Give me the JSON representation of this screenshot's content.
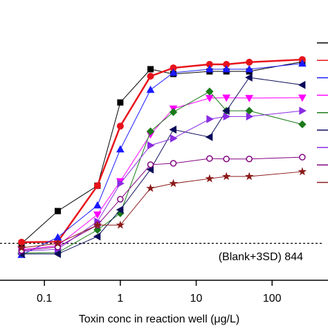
{
  "chart_data": {
    "type": "line",
    "x_label": "Toxin conc in reaction well (μg/L)",
    "annotation": "(Blank+3SD) 844",
    "threshold": 844,
    "log_x": true,
    "xlim": [
      0.026,
      545
    ],
    "ylim": [
      0,
      6400
    ],
    "xticks": [
      {
        "value": 0.1,
        "label": "0.1"
      },
      1,
      10,
      100
    ],
    "x": [
      0.05,
      0.15,
      0.5,
      1,
      2.5,
      5,
      15,
      25,
      50,
      250
    ],
    "series": [
      {
        "color": "#000000",
        "marker": "square",
        "values": [
          840,
          1580,
          2160,
          4060,
          4820,
          4710,
          4770,
          4770,
          4770,
          4990
        ]
      },
      {
        "color": "#e8131b",
        "marker": "circle",
        "values": [
          870,
          880,
          2160,
          3520,
          4660,
          4850,
          4930,
          4930,
          4980,
          5040
        ]
      },
      {
        "color": "#1a1aff",
        "marker": "up",
        "values": [
          580,
          980,
          1710,
          2990,
          4350,
          4740,
          4820,
          4820,
          4820,
          4950
        ]
      },
      {
        "color": "#ff00ff",
        "marker": "down",
        "values": [
          700,
          790,
          1500,
          2260,
          3330,
          3920,
          4160,
          4170,
          4160,
          4170
        ]
      },
      {
        "color": "#1a7a1a",
        "marker": "diamond",
        "values": [
          620,
          630,
          1150,
          1530,
          3400,
          3840,
          4310,
          3870,
          3870,
          3560
        ]
      },
      {
        "color": "#0a0a5a",
        "marker": "left",
        "values": [
          600,
          600,
          1000,
          1610,
          2530,
          3440,
          3270,
          3870,
          4630,
          4460
        ]
      },
      {
        "color": "#8a2be2",
        "marker": "right",
        "values": [
          660,
          710,
          1340,
          2210,
          3080,
          3240,
          3680,
          3740,
          3740,
          3870
        ]
      },
      {
        "color": "#800080",
        "marker": "open",
        "values": [
          680,
          760,
          1260,
          1850,
          2640,
          2670,
          2780,
          2770,
          2770,
          2810
        ]
      },
      {
        "color": "#8b1a1a",
        "marker": "star",
        "values": [
          740,
          840,
          1260,
          1260,
          2100,
          2210,
          2320,
          2370,
          2370,
          2480
        ]
      }
    ]
  }
}
